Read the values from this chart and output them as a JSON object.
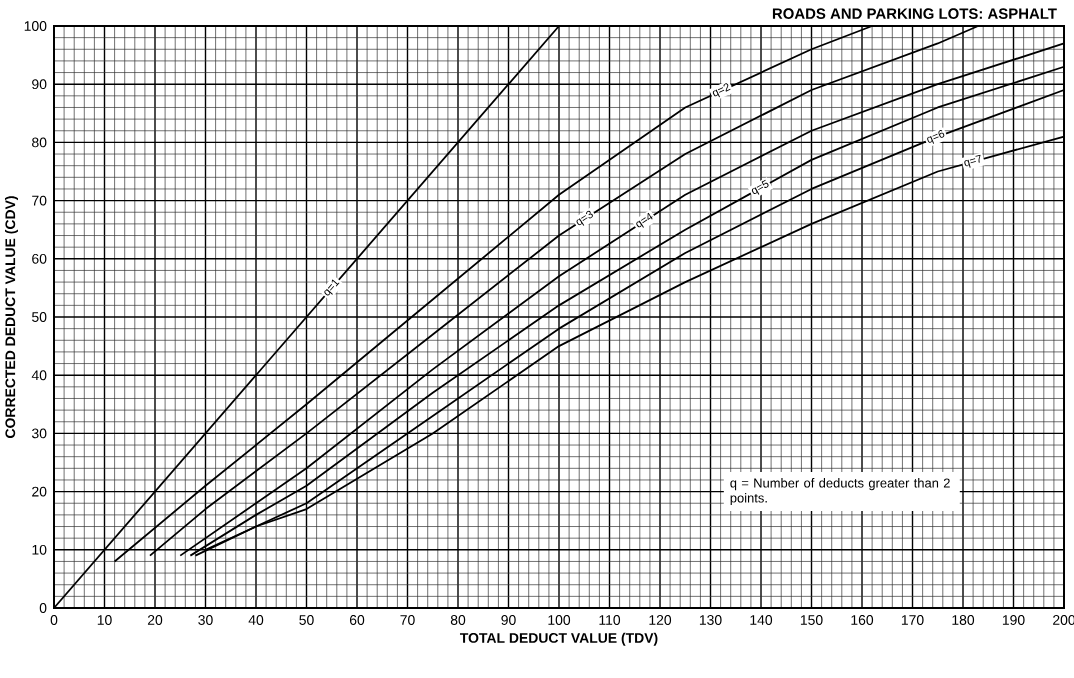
{
  "chart_data": {
    "type": "line",
    "title": "ROADS AND PARKING LOTS:  ASPHALT",
    "xlabel": "TOTAL DEDUCT VALUE (TDV)",
    "ylabel": "CORRECTED DEDUCT VALUE (CDV)",
    "annotations": [
      "q = Number of deducts greater than 2 points."
    ],
    "xlim": [
      0,
      200
    ],
    "ylim": [
      0,
      100
    ],
    "xticks": [
      0,
      10,
      20,
      30,
      40,
      50,
      60,
      70,
      80,
      90,
      100,
      110,
      120,
      130,
      140,
      150,
      160,
      170,
      180,
      190,
      200
    ],
    "yticks": [
      0,
      10,
      20,
      30,
      40,
      50,
      60,
      70,
      80,
      90,
      100
    ],
    "grid": true,
    "legend": false,
    "marker": "none",
    "line_style": "solid",
    "series": [
      {
        "name": "q=1",
        "color": "#000000",
        "x": [
          0,
          100
        ],
        "values": [
          0,
          100
        ]
      },
      {
        "name": "q=2",
        "color": "#000000",
        "x": [
          12,
          30,
          50,
          75,
          100,
          125,
          150,
          162
        ],
        "values": [
          8,
          21,
          35,
          53,
          71,
          86,
          96,
          100
        ]
      },
      {
        "name": "q=3",
        "color": "#000000",
        "x": [
          19,
          30,
          50,
          75,
          100,
          125,
          150,
          175,
          183
        ],
        "values": [
          9,
          17,
          30,
          47,
          64,
          78,
          89,
          97,
          100
        ]
      },
      {
        "name": "q=4",
        "color": "#000000",
        "x": [
          25,
          40,
          50,
          75,
          100,
          125,
          150,
          175,
          200
        ],
        "values": [
          9,
          18,
          24,
          41,
          57,
          71,
          82,
          90,
          97
        ]
      },
      {
        "name": "q=5",
        "color": "#000000",
        "x": [
          27,
          40,
          50,
          75,
          100,
          125,
          150,
          175,
          200
        ],
        "values": [
          9,
          16,
          21,
          37,
          52,
          65,
          77,
          86,
          93
        ]
      },
      {
        "name": "q=6",
        "color": "#000000",
        "x": [
          28,
          40,
          50,
          75,
          100,
          125,
          150,
          175,
          200
        ],
        "values": [
          9,
          14,
          18,
          33,
          48,
          61,
          72,
          81,
          89
        ]
      },
      {
        "name": "q=7",
        "color": "#000000",
        "x": [
          30,
          40,
          50,
          75,
          100,
          125,
          150,
          175,
          200
        ],
        "values": [
          10,
          14,
          17,
          30,
          45,
          56,
          66,
          75,
          81
        ]
      }
    ]
  }
}
